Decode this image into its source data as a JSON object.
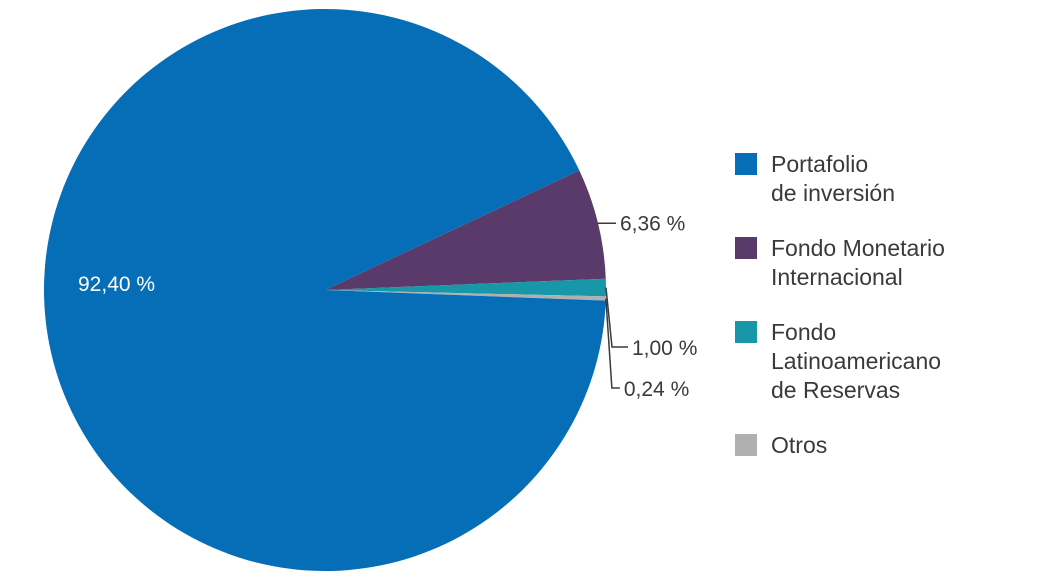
{
  "chart_data": {
    "type": "pie",
    "title": "",
    "slices": [
      {
        "label": "Portafolio\nde inversión",
        "value": 92.4,
        "display": "92,40 %",
        "color": "#066db7"
      },
      {
        "label": "Fondo Monetario\nInternacional",
        "value": 6.36,
        "display": "6,36 %",
        "color": "#5a3a6b"
      },
      {
        "label": "Fondo\nLatinoamericano\nde Reservas",
        "value": 1.0,
        "display": "1,00 %",
        "color": "#1797a8"
      },
      {
        "label": "Otros",
        "value": 0.24,
        "display": "0,24 %",
        "color": "#b0b0b0"
      }
    ],
    "legend_position": "right"
  }
}
